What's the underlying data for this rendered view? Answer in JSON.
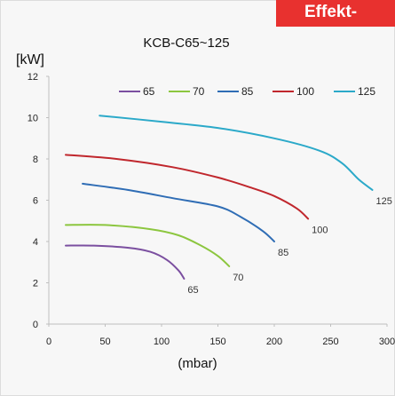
{
  "header": {
    "tab_label": "Effekt-"
  },
  "chart_data": {
    "type": "line",
    "title": "KCB-C65~125",
    "ylabel": "[kW]",
    "xlabel": "(mbar)",
    "xlim": [
      0,
      300
    ],
    "ylim": [
      0,
      12
    ],
    "x_ticks": [
      "0",
      "50",
      "100",
      "150",
      "200",
      "250",
      "300"
    ],
    "y_ticks": [
      "0",
      "2",
      "4",
      "6",
      "8",
      "10",
      "12"
    ],
    "grid": false,
    "legend_position": "top",
    "series": [
      {
        "name": "65",
        "color": "#7b4fa0",
        "end_label": "65",
        "points": [
          [
            15,
            3.8
          ],
          [
            40,
            3.8
          ],
          [
            70,
            3.7
          ],
          [
            90,
            3.5
          ],
          [
            105,
            3.1
          ],
          [
            115,
            2.6
          ],
          [
            120,
            2.2
          ]
        ]
      },
      {
        "name": "70",
        "color": "#8cc63f",
        "end_label": "70",
        "points": [
          [
            15,
            4.8
          ],
          [
            50,
            4.8
          ],
          [
            90,
            4.6
          ],
          [
            115,
            4.3
          ],
          [
            135,
            3.8
          ],
          [
            150,
            3.3
          ],
          [
            160,
            2.8
          ]
        ]
      },
      {
        "name": "85",
        "color": "#2f6db5",
        "end_label": "85",
        "points": [
          [
            30,
            6.8
          ],
          [
            70,
            6.5
          ],
          [
            110,
            6.1
          ],
          [
            150,
            5.7
          ],
          [
            170,
            5.2
          ],
          [
            190,
            4.5
          ],
          [
            200,
            4.0
          ]
        ]
      },
      {
        "name": "100",
        "color": "#c0272d",
        "end_label": "100",
        "points": [
          [
            15,
            8.2
          ],
          [
            60,
            8.0
          ],
          [
            110,
            7.6
          ],
          [
            150,
            7.1
          ],
          [
            180,
            6.6
          ],
          [
            200,
            6.2
          ],
          [
            220,
            5.6
          ],
          [
            230,
            5.1
          ]
        ]
      },
      {
        "name": "125",
        "color": "#2ba9c9",
        "end_label": "125",
        "points": [
          [
            45,
            10.1
          ],
          [
            100,
            9.8
          ],
          [
            150,
            9.5
          ],
          [
            200,
            9.0
          ],
          [
            240,
            8.4
          ],
          [
            260,
            7.8
          ],
          [
            275,
            7.0
          ],
          [
            287,
            6.5
          ]
        ]
      }
    ]
  }
}
